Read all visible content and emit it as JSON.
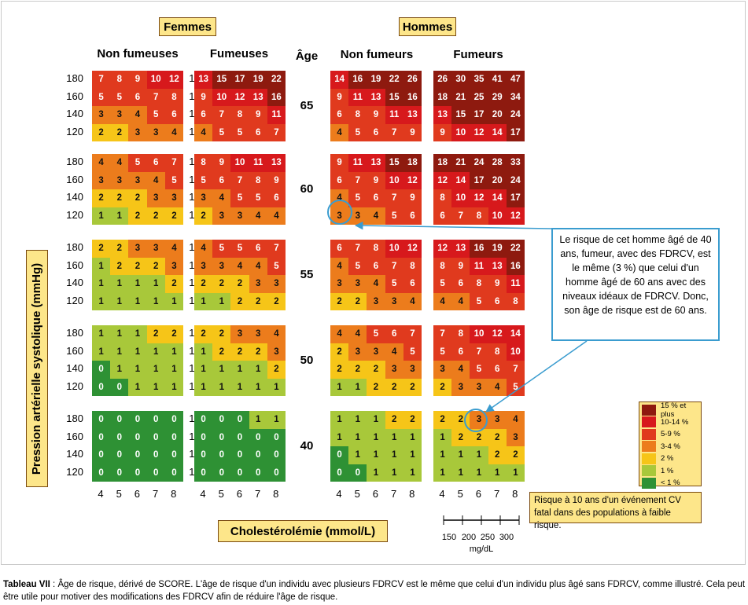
{
  "chart_data": {
    "type": "heatmap",
    "groups": [
      "Femmes",
      "Hommes"
    ],
    "panels": [
      "Non fumeuses",
      "Fumeuses",
      "Non fumeurs",
      "Fumeurs"
    ],
    "age_label": "Âge",
    "ages": [
      "65",
      "60",
      "55",
      "50",
      "40"
    ],
    "sbp_values": [
      "180",
      "160",
      "140",
      "120"
    ],
    "chol_values": [
      "4",
      "5",
      "6",
      "7",
      "8"
    ],
    "ylabel": "Pression artérielle systolique (mmHg)",
    "xlabel": "Cholestérolémie (mmol/L)",
    "values": [
      [
        [
          [
            7,
            8,
            9,
            10,
            12
          ],
          [
            5,
            5,
            6,
            7,
            8
          ],
          [
            3,
            3,
            4,
            5,
            6
          ],
          [
            2,
            2,
            3,
            3,
            4
          ]
        ],
        [
          [
            4,
            4,
            5,
            6,
            7
          ],
          [
            3,
            3,
            3,
            4,
            5
          ],
          [
            2,
            2,
            2,
            3,
            3
          ],
          [
            1,
            1,
            2,
            2,
            2
          ]
        ],
        [
          [
            2,
            2,
            3,
            3,
            4
          ],
          [
            1,
            2,
            2,
            2,
            3
          ],
          [
            1,
            1,
            1,
            1,
            2
          ],
          [
            1,
            1,
            1,
            1,
            1
          ]
        ],
        [
          [
            1,
            1,
            1,
            2,
            2
          ],
          [
            1,
            1,
            1,
            1,
            1
          ],
          [
            0,
            1,
            1,
            1,
            1
          ],
          [
            0,
            0,
            1,
            1,
            1
          ]
        ],
        [
          [
            0,
            0,
            0,
            0,
            0
          ],
          [
            0,
            0,
            0,
            0,
            0
          ],
          [
            0,
            0,
            0,
            0,
            0
          ],
          [
            0,
            0,
            0,
            0,
            0
          ]
        ]
      ],
      [
        [
          [
            13,
            15,
            17,
            19,
            22
          ],
          [
            9,
            10,
            12,
            13,
            16
          ],
          [
            6,
            7,
            8,
            9,
            11
          ],
          [
            4,
            5,
            5,
            6,
            7
          ]
        ],
        [
          [
            8,
            9,
            10,
            11,
            13
          ],
          [
            5,
            6,
            7,
            8,
            9
          ],
          [
            3,
            4,
            5,
            5,
            6
          ],
          [
            2,
            3,
            3,
            4,
            4
          ]
        ],
        [
          [
            4,
            5,
            5,
            6,
            7
          ],
          [
            3,
            3,
            4,
            4,
            5
          ],
          [
            2,
            2,
            2,
            3,
            3
          ],
          [
            1,
            1,
            2,
            2,
            2
          ]
        ],
        [
          [
            2,
            2,
            3,
            3,
            4
          ],
          [
            1,
            2,
            2,
            2,
            3
          ],
          [
            1,
            1,
            1,
            1,
            2
          ],
          [
            1,
            1,
            1,
            1,
            1
          ]
        ],
        [
          [
            0,
            0,
            0,
            1,
            1
          ],
          [
            0,
            0,
            0,
            0,
            0
          ],
          [
            0,
            0,
            0,
            0,
            0
          ],
          [
            0,
            0,
            0,
            0,
            0
          ]
        ]
      ],
      [
        [
          [
            14,
            16,
            19,
            22,
            26
          ],
          [
            9,
            11,
            13,
            15,
            16
          ],
          [
            6,
            8,
            9,
            11,
            13
          ],
          [
            4,
            5,
            6,
            7,
            9
          ]
        ],
        [
          [
            9,
            11,
            13,
            15,
            18
          ],
          [
            6,
            7,
            9,
            10,
            12
          ],
          [
            4,
            5,
            6,
            7,
            9
          ],
          [
            3,
            3,
            4,
            5,
            6
          ]
        ],
        [
          [
            6,
            7,
            8,
            10,
            12
          ],
          [
            4,
            5,
            6,
            7,
            8
          ],
          [
            3,
            3,
            4,
            5,
            6
          ],
          [
            2,
            2,
            3,
            3,
            4
          ]
        ],
        [
          [
            4,
            4,
            5,
            6,
            7
          ],
          [
            2,
            3,
            3,
            4,
            5
          ],
          [
            2,
            2,
            2,
            3,
            3
          ],
          [
            1,
            1,
            2,
            2,
            2
          ]
        ],
        [
          [
            1,
            1,
            1,
            2,
            2
          ],
          [
            1,
            1,
            1,
            1,
            1
          ],
          [
            0,
            1,
            1,
            1,
            1
          ],
          [
            0,
            0,
            1,
            1,
            1
          ]
        ]
      ],
      [
        [
          [
            26,
            30,
            35,
            41,
            47
          ],
          [
            18,
            21,
            25,
            29,
            34
          ],
          [
            13,
            15,
            17,
            20,
            24
          ],
          [
            9,
            10,
            12,
            14,
            17
          ]
        ],
        [
          [
            18,
            21,
            24,
            28,
            33
          ],
          [
            12,
            14,
            17,
            20,
            24
          ],
          [
            8,
            10,
            12,
            14,
            17
          ],
          [
            6,
            7,
            8,
            10,
            12
          ]
        ],
        [
          [
            12,
            13,
            16,
            19,
            22
          ],
          [
            8,
            9,
            11,
            13,
            16
          ],
          [
            5,
            6,
            8,
            9,
            11
          ],
          [
            4,
            4,
            5,
            6,
            8
          ]
        ],
        [
          [
            7,
            8,
            10,
            12,
            14
          ],
          [
            5,
            6,
            7,
            8,
            10
          ],
          [
            3,
            4,
            5,
            6,
            7
          ],
          [
            2,
            3,
            3,
            4,
            5
          ]
        ],
        [
          [
            2,
            2,
            3,
            3,
            4
          ],
          [
            1,
            2,
            2,
            2,
            3
          ],
          [
            1,
            1,
            1,
            2,
            2
          ],
          [
            1,
            1,
            1,
            1,
            1
          ]
        ]
      ]
    ],
    "legend": [
      {
        "label": "15 % et plus",
        "color": "#8e1a0f",
        "min": 15,
        "max": 999
      },
      {
        "label": "10-14 %",
        "color": "#d7191c",
        "min": 10,
        "max": 14
      },
      {
        "label": "5-9 %",
        "color": "#e03a1e",
        "min": 5,
        "max": 9
      },
      {
        "label": "3-4 %",
        "color": "#ec7c1c",
        "min": 3,
        "max": 4
      },
      {
        "label": "2 %",
        "color": "#f6c518",
        "min": 2,
        "max": 2
      },
      {
        "label": "1 %",
        "color": "#a8c83a",
        "min": 1,
        "max": 1
      },
      {
        "label": "< 1 %",
        "color": "#2e9134",
        "min": 0,
        "max": 0
      }
    ],
    "legend_note": "Risque à 10 ans d'un événement CV fatal dans des populations à faible risque.",
    "mgdl_ticks": [
      "150",
      "200",
      "250",
      "300"
    ],
    "mgdl_unit": "mg/dL"
  },
  "callout": "Le risque de cet homme âgé de 40 ans, fumeur, avec des FDRCV, est le même (3 %) que celui d'un homme âgé de 60 ans avec des niveaux idéaux de FDRCV. Donc, son âge de risque est de 60 ans.",
  "caption": {
    "prefix": "Tableau VII",
    "text": " : Âge de risque, dérivé de SCORE. L'âge de risque d'un individu avec plusieurs FDRCV est le même que celui d'un individu plus âgé sans FDRCV, comme illustré. Cela peut être utile pour motiver des modifications des FDRCV afin de réduire l'âge de risque."
  }
}
